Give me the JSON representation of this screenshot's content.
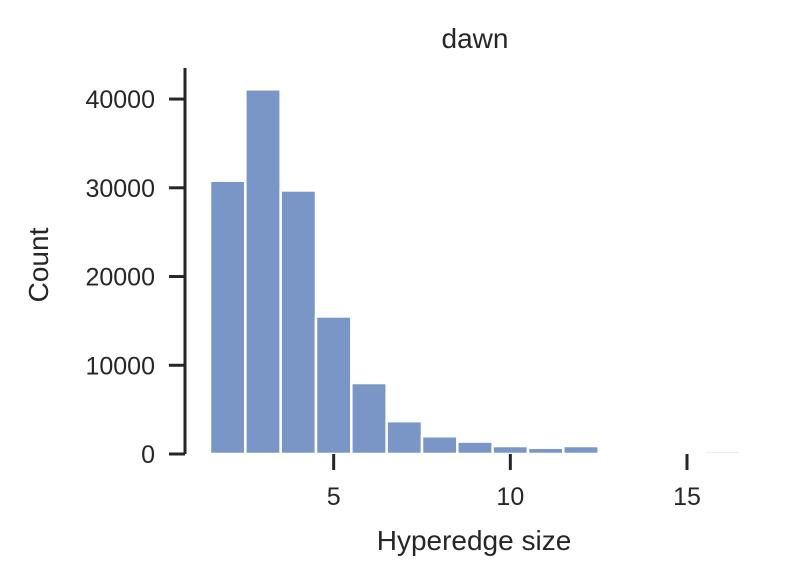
{
  "chart_data": {
    "type": "bar",
    "title": "dawn",
    "xlabel": "Hyperedge size",
    "ylabel": "Count",
    "bin_width": 1,
    "bins": [
      {
        "x": 2,
        "count": 30800
      },
      {
        "x": 3,
        "count": 41100
      },
      {
        "x": 4,
        "count": 29700
      },
      {
        "x": 5,
        "count": 15500
      },
      {
        "x": 6,
        "count": 8000
      },
      {
        "x": 7,
        "count": 3700
      },
      {
        "x": 8,
        "count": 2000
      },
      {
        "x": 9,
        "count": 1400
      },
      {
        "x": 10,
        "count": 900
      },
      {
        "x": 11,
        "count": 700
      },
      {
        "x": 12,
        "count": 900
      },
      {
        "x": 13,
        "count": 60
      },
      {
        "x": 14,
        "count": 30
      },
      {
        "x": 15,
        "count": 10
      },
      {
        "x": 16,
        "count": 300
      }
    ],
    "xlim": [
      1.5,
      16.5
    ],
    "ylim": [
      0,
      43500
    ],
    "xticks": [
      5,
      10,
      15
    ],
    "yticks": [
      0,
      10000,
      20000,
      30000,
      40000
    ],
    "grid": false,
    "bar_color": "#7a96c6",
    "axis_color": "#262626"
  }
}
